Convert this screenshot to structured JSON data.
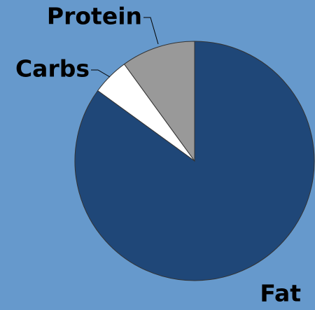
{
  "chart_data": {
    "type": "pie",
    "categories": [
      "Fat",
      "Carbs",
      "Protein"
    ],
    "values": [
      85,
      5,
      10
    ],
    "colors": [
      "#1f4778",
      "#ffffff",
      "#999999"
    ],
    "background": "#6699cc"
  }
}
